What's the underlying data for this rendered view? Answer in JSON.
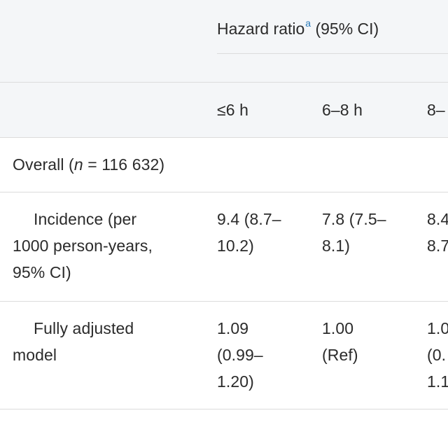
{
  "header": {
    "hazard_ratio_label": "Hazard ratio",
    "hazard_ratio_note": "a",
    "hazard_ratio_ci": " (95% CI)"
  },
  "columns": [
    "≤6 h",
    "6–8 h",
    "8–"
  ],
  "overall": {
    "prefix": "Overall (",
    "n": "n",
    "suffix": " = 116 632)"
  },
  "rows": [
    {
      "label_line1": "Incidence (per",
      "label_line2": "1000 person-years,",
      "label_line3": "95% CI)",
      "c1_line1": "9.4 (8.7–",
      "c1_line2": "10.2)",
      "c2_line1": "7.8 (7.5–",
      "c2_line2": "8.1)",
      "c3_line1": "8.4",
      "c3_line2": "8.7"
    },
    {
      "label_line1": "Fully adjusted",
      "label_line2": "model",
      "c1_line1": "1.09",
      "c1_line2": "(0.99–",
      "c1_line3": "1.20)",
      "c2_line1": "1.00",
      "c2_line2": "(Ref)",
      "c3_line1": "1.0",
      "c3_line2": "(0.",
      "c3_line3": "1.1"
    }
  ]
}
